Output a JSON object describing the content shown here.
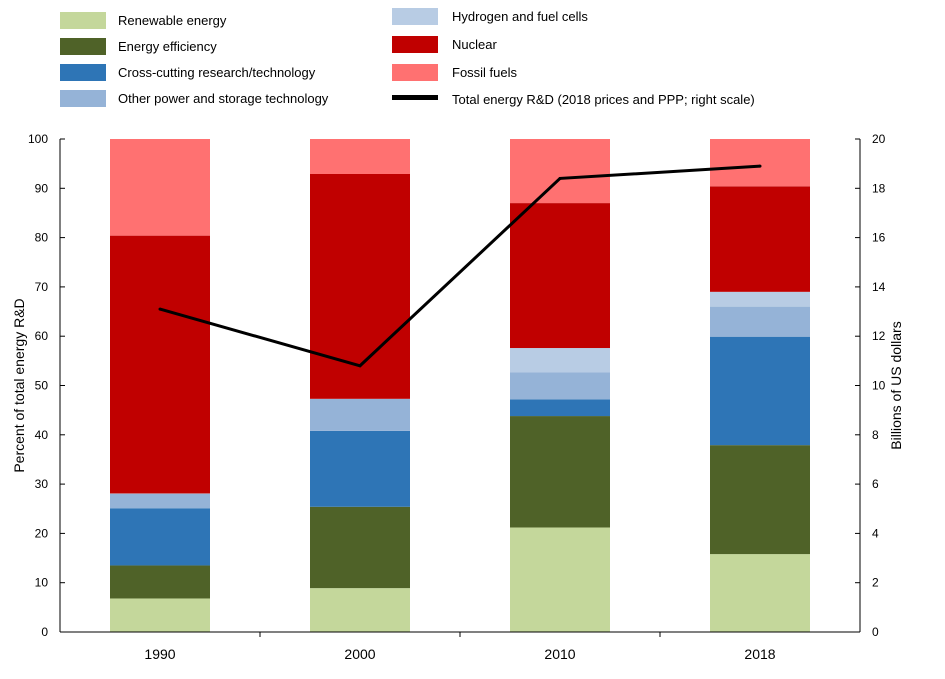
{
  "chart_data": {
    "type": "bar",
    "subtype": "stacked-percent-with-line-overlay",
    "categories": [
      "1990",
      "2000",
      "2010",
      "2018"
    ],
    "series": [
      {
        "name": "Renewable energy",
        "color": "#c4d79b",
        "values": [
          6.8,
          8.9,
          21.2,
          15.8
        ]
      },
      {
        "name": "Energy efficiency",
        "color": "#4f6228",
        "values": [
          6.7,
          16.5,
          22.6,
          22.1
        ]
      },
      {
        "name": "Cross-cutting research/technology",
        "color": "#2e75b6",
        "values": [
          11.6,
          15.4,
          3.4,
          22.0
        ]
      },
      {
        "name": "Other power and storage technology",
        "color": "#95b3d7",
        "values": [
          2.9,
          6.5,
          5.5,
          6.1
        ]
      },
      {
        "name": "Hydrogen and fuel cells",
        "color": "#b8cce4",
        "values": [
          0.1,
          0.0,
          4.9,
          3.0
        ]
      },
      {
        "name": "Nuclear",
        "color": "#c00000",
        "values": [
          52.3,
          45.6,
          29.4,
          21.4
        ]
      },
      {
        "name": "Fossil fuels",
        "color": "#ff7171",
        "values": [
          19.6,
          7.1,
          13.0,
          9.6
        ]
      }
    ],
    "line_series": {
      "name": "Total energy R&D (2018 prices and PPP; right scale)",
      "color": "#000000",
      "axis": "right",
      "values": [
        13.1,
        10.8,
        18.4,
        18.9
      ]
    },
    "ylabel": "Percent of total energy R&D",
    "y2label": "Billions of US dollars",
    "ylim": [
      0,
      100
    ],
    "y2lim": [
      0,
      20
    ],
    "yticks": [
      "0",
      "10",
      "20",
      "30",
      "40",
      "50",
      "60",
      "70",
      "80",
      "90",
      "100"
    ],
    "y2ticks": [
      "0",
      "2",
      "4",
      "6",
      "8",
      "10",
      "12",
      "14",
      "16",
      "18",
      "20"
    ],
    "grid": false,
    "legend_position": "top"
  }
}
